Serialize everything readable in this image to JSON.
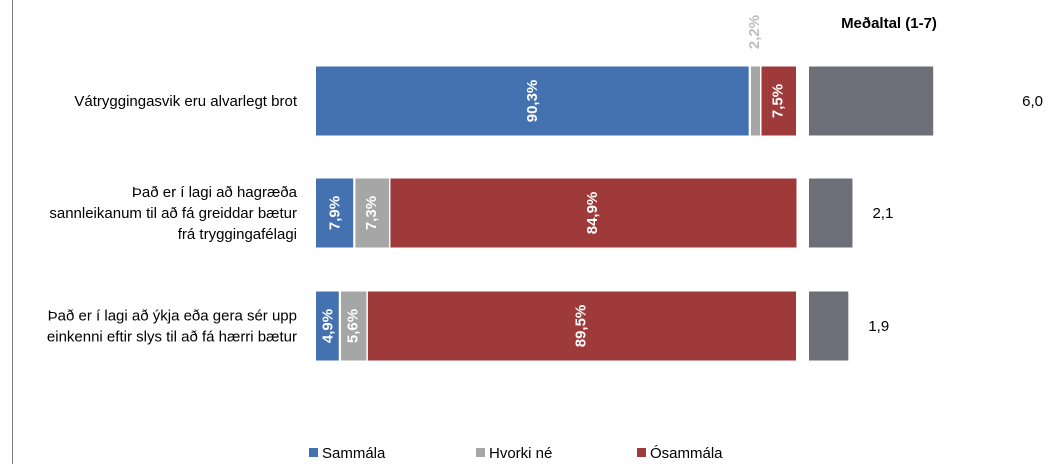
{
  "chart_data": {
    "type": "bar",
    "stacked": true,
    "orientation": "horizontal",
    "categories": [
      [
        "Vátryggingasvik eru alvarlegt brot"
      ],
      [
        "Það er í lagi að hagræða",
        "sannleikanum til að fá greiddar bætur",
        "frá tryggingafélagi"
      ],
      [
        "Það er í lagi að ýkja eða gera sér upp",
        "einkenni eftir slys til að fá hærri bætur"
      ]
    ],
    "series": [
      {
        "name": "Sammála",
        "color": "#4472B0",
        "values": [
          90.3,
          7.9,
          4.9
        ],
        "labels": [
          "90,3%",
          "7,9%",
          "4,9%"
        ]
      },
      {
        "name": "Hvorki né",
        "color": "#A6A6A6",
        "values": [
          2.2,
          7.3,
          5.6
        ],
        "labels": [
          "2,2%",
          "7,3%",
          "5,6%"
        ]
      },
      {
        "name": "Ósammála",
        "color": "#9E3A3A",
        "values": [
          7.5,
          84.9,
          89.5
        ],
        "labels": [
          "7,5%",
          "84,9%",
          "89,5%"
        ]
      }
    ],
    "mean": {
      "title": "Meðaltal (1-7)",
      "color": "#6E6E78",
      "range": [
        1,
        7
      ],
      "values": [
        6.0,
        2.1,
        1.9
      ],
      "labels": [
        "6,0",
        "2,1",
        "1,9"
      ]
    },
    "xlim": [
      0,
      100
    ],
    "legend_position": "bottom"
  }
}
